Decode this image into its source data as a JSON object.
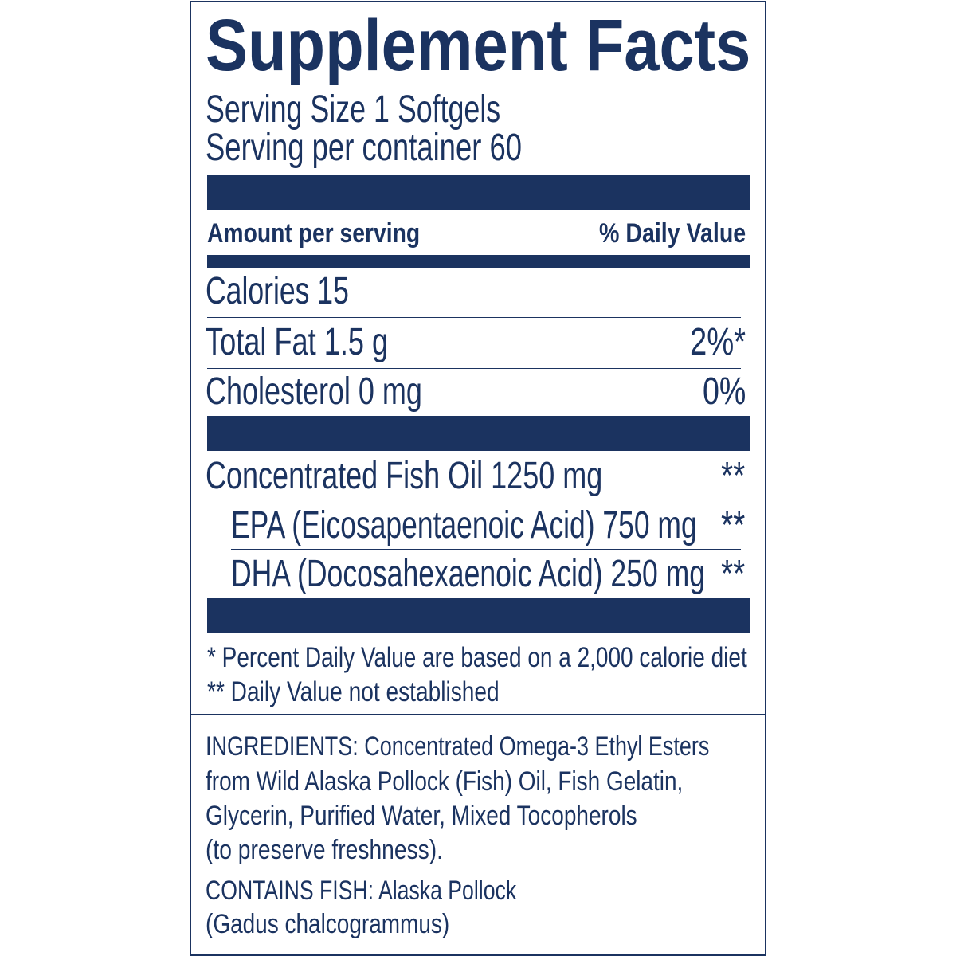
{
  "label": {
    "title": "Supplement Facts",
    "serving_size": "Serving Size 1 Softgels",
    "servings_per_container": "Serving per container 60",
    "header": {
      "amount": "Amount per serving",
      "daily_value": "% Daily Value"
    },
    "rows": [
      {
        "name": "Calories 15",
        "dv": ""
      },
      {
        "name": "Total Fat 1.5 g",
        "dv": "2%*"
      },
      {
        "name": "Cholesterol 0 mg",
        "dv": "0%"
      },
      {
        "name": "Concentrated Fish Oil 1250 mg",
        "dv": "**"
      },
      {
        "name": "EPA (Eicosapentaenoic Acid) 750 mg",
        "dv": "**"
      },
      {
        "name": "DHA (Docosahexaenoic Acid) 250 mg",
        "dv": "**"
      }
    ],
    "footnotes": [
      "* Percent Daily Value are based on a 2,000 calorie diet",
      "** Daily Value not established"
    ],
    "ingredients": [
      "INGREDIENTS: Concentrated Omega-3 Ethyl Esters",
      "from Wild Alaska Pollock (Fish) Oil, Fish Gelatin,",
      "Glycerin, Purified Water, Mixed Tocopherols",
      "(to preserve freshness)."
    ],
    "allergen": [
      "CONTAINS FISH: Alaska Pollock",
      "(Gadus chalcogrammus)"
    ]
  },
  "colors": {
    "ink": "#1b3360",
    "background": "#ffffff"
  }
}
